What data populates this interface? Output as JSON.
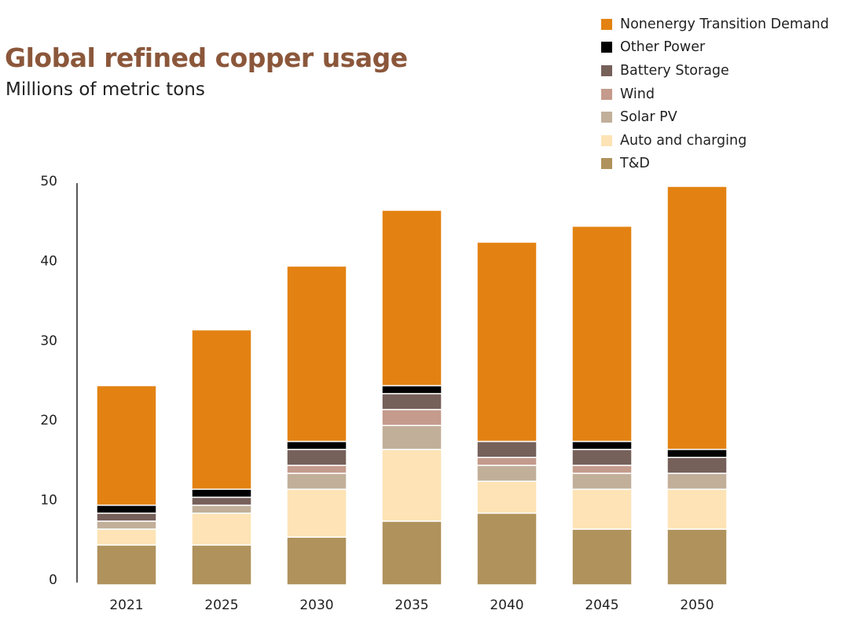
{
  "chart_data": {
    "type": "bar",
    "stacked": true,
    "title": "Global refined copper usage",
    "subtitle": "Millions of metric tons",
    "categories": [
      "2021",
      "2025",
      "2030",
      "2035",
      "2040",
      "2045",
      "2050"
    ],
    "ylim": [
      0,
      50
    ],
    "yticks": [
      0,
      10,
      20,
      30,
      40,
      50
    ],
    "grid": false,
    "legend_position": "top-right",
    "series": [
      {
        "name": "T&D",
        "color": "#b0925c",
        "values": [
          5,
          5,
          6,
          8,
          9,
          7,
          7
        ]
      },
      {
        "name": "Auto and charging",
        "color": "#fde3b5",
        "values": [
          2,
          4,
          6,
          9,
          4,
          5,
          5
        ]
      },
      {
        "name": "Solar PV",
        "color": "#c2af9a",
        "values": [
          1,
          1,
          2,
          3,
          2,
          2,
          2
        ]
      },
      {
        "name": "Wind",
        "color": "#c49b8c",
        "values": [
          0,
          0,
          1,
          2,
          1,
          1,
          0
        ]
      },
      {
        "name": "Battery Storage",
        "color": "#76605a",
        "values": [
          1,
          1,
          2,
          2,
          2,
          2,
          2
        ]
      },
      {
        "name": "Other Power",
        "color": "#000000",
        "values": [
          1,
          1,
          1,
          1,
          0,
          1,
          1
        ]
      },
      {
        "name": "Nonenergy Transition Demand",
        "color": "#e38212",
        "values": [
          15,
          20,
          22,
          22,
          25,
          27,
          33
        ]
      }
    ]
  }
}
